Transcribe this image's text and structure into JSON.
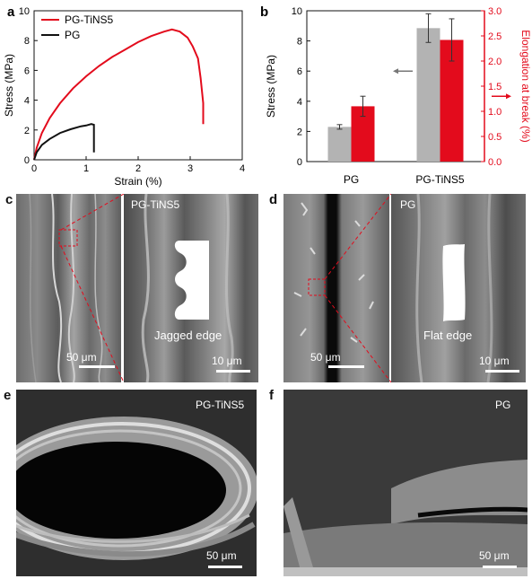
{
  "panels": {
    "a": {
      "letter": "a"
    },
    "b": {
      "letter": "b"
    },
    "c": {
      "letter": "c",
      "inset_label": "PG-TiNS5",
      "scale_left": "50 μm",
      "scale_right": "10 μm",
      "edge_label": "Jagged edge"
    },
    "d": {
      "letter": "d",
      "inset_label": "PG",
      "scale_left": "50 μm",
      "scale_right": "10 μm",
      "edge_label": "Flat edge"
    },
    "e": {
      "letter": "e",
      "label": "PG-TiNS5",
      "scale": "50 μm"
    },
    "f": {
      "letter": "f",
      "label": "PG",
      "scale": "50 μm"
    }
  },
  "colors": {
    "red": "#e30b1c",
    "black": "#111111",
    "gray": "#b3b3b3"
  },
  "chart_data": [
    {
      "type": "line",
      "xlabel": "Strain (%)",
      "ylabel": "Stress (MPa)",
      "xlim": [
        0,
        4
      ],
      "ylim": [
        0,
        10
      ],
      "xticks": [
        0,
        1,
        2,
        3,
        4
      ],
      "yticks": [
        0,
        2,
        4,
        6,
        8,
        10
      ],
      "legend_position": "top-left",
      "series": [
        {
          "name": "PG-TiNS5",
          "color": "#e30b1c",
          "x": [
            0,
            0.05,
            0.15,
            0.3,
            0.5,
            0.75,
            1.0,
            1.25,
            1.5,
            1.75,
            2.0,
            2.25,
            2.5,
            2.65,
            2.8,
            2.95,
            3.05,
            3.15,
            3.2,
            3.25,
            3.25
          ],
          "y": [
            0,
            0.8,
            1.8,
            2.8,
            3.8,
            4.8,
            5.6,
            6.3,
            6.9,
            7.4,
            7.9,
            8.3,
            8.6,
            8.75,
            8.6,
            8.2,
            7.6,
            6.8,
            5.5,
            3.8,
            2.4
          ]
        },
        {
          "name": "PG",
          "color": "#111111",
          "x": [
            0,
            0.05,
            0.15,
            0.3,
            0.5,
            0.7,
            0.9,
            1.0,
            1.1,
            1.15,
            1.15
          ],
          "y": [
            0,
            0.5,
            1.0,
            1.4,
            1.8,
            2.05,
            2.25,
            2.3,
            2.4,
            2.35,
            0.5
          ]
        }
      ]
    },
    {
      "type": "bar",
      "categories": [
        "PG",
        "PG-TiNS5"
      ],
      "ylabel": "Stress (MPa)",
      "ylabel_right": "Elongation at break (%)",
      "ylim": [
        0,
        10
      ],
      "ylim_right": [
        0,
        3.0
      ],
      "yticks": [
        0,
        2,
        4,
        6,
        8,
        10
      ],
      "yticks_right": [
        "0.0",
        "0.5",
        "1.0",
        "1.5",
        "2.0",
        "2.5",
        "3.0"
      ],
      "series": [
        {
          "name": "Stress (MPa)",
          "axis": "left",
          "color": "#b3b3b3",
          "values": [
            2.3,
            8.85
          ],
          "errors": [
            0.15,
            0.95
          ]
        },
        {
          "name": "Elongation at break (%)",
          "axis": "right",
          "color": "#e30b1c",
          "values": [
            1.1,
            2.42
          ],
          "errors": [
            0.2,
            0.42
          ]
        }
      ]
    }
  ]
}
